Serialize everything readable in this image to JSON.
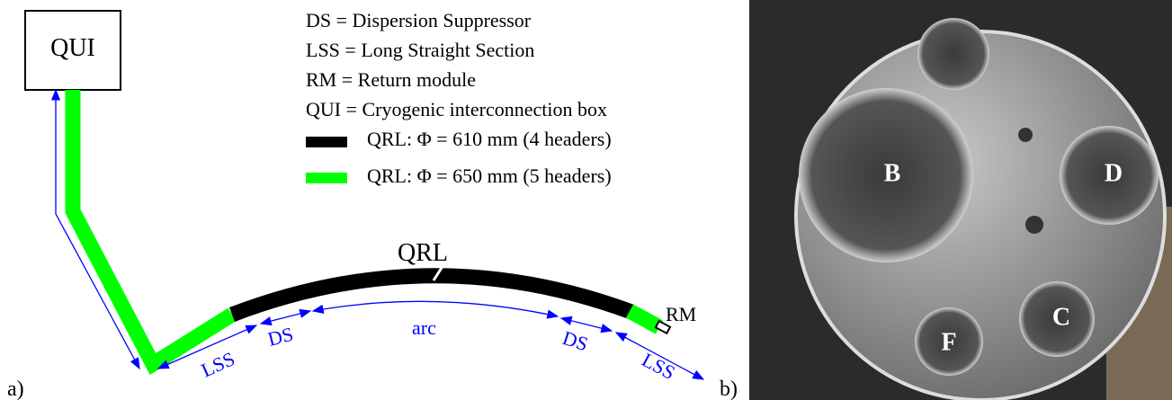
{
  "panel_labels": [
    "a)",
    "b)"
  ],
  "legend": {
    "definitions": [
      "DS = Dispersion Suppressor",
      "LSS = Long Straight Section",
      "RM =  Return module",
      "QUI = Cryogenic interconnection box"
    ],
    "lines": [
      {
        "label": "QRL: Φ = 610 mm (4 headers)",
        "color": "#000000"
      },
      {
        "label": "QRL: Φ = 650 mm (5 headers)",
        "color": "#00ff00"
      }
    ]
  },
  "diagram": {
    "qui": "QUI",
    "qrl": "QRL",
    "rm": "RM",
    "segments": [
      "LSS",
      "DS",
      "arc",
      "DS",
      "LSS"
    ]
  },
  "photo": {
    "pipes": [
      "B",
      "D",
      "C",
      "F"
    ]
  }
}
